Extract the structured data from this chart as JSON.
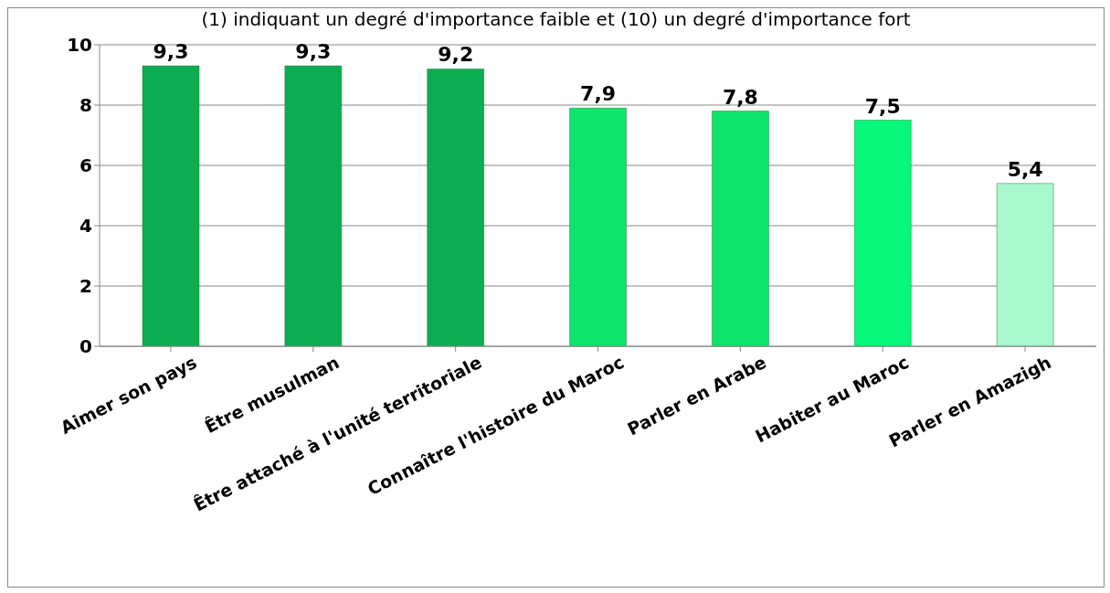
{
  "chart_data": {
    "type": "bar",
    "subtitle": "(1) indiquant un degré d'importance faible et (10) un degré d'importance fort",
    "categories": [
      "Aimer son pays",
      "Être musulman",
      "Être attaché à l'unité territoriale",
      "Connaître l'histoire du Maroc",
      "Parler en Arabe",
      "Habiter au Maroc",
      "Parler en Amazigh"
    ],
    "values": [
      9.3,
      9.3,
      9.2,
      7.9,
      7.8,
      7.5,
      5.4
    ],
    "colors": [
      "#0cad52",
      "#0cad52",
      "#0cad52",
      "#0ce46c",
      "#0ce46c",
      "#06f77a",
      "#a8f7cd"
    ],
    "value_labels": [
      "9,3",
      "9,3",
      "9,2",
      "7,9",
      "7,8",
      "7,5",
      "5,4"
    ],
    "ylim": [
      0,
      10
    ],
    "yticks": [
      0,
      2,
      4,
      6,
      8,
      10
    ],
    "grid": "y"
  }
}
